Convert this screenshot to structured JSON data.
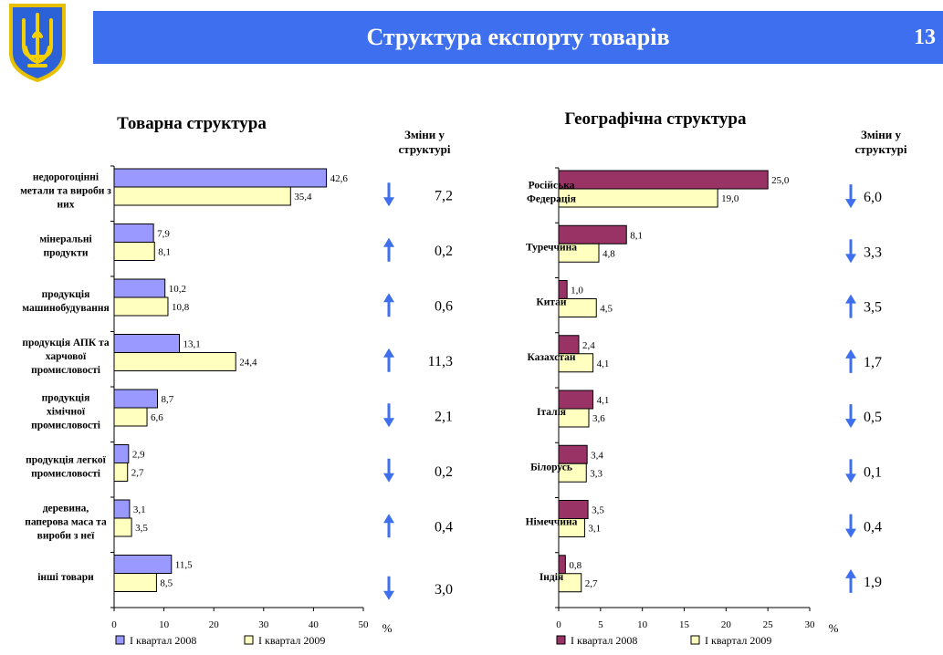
{
  "header": {
    "title": "Структура експорту товарів",
    "page_number": "13"
  },
  "colors": {
    "header_bg": "#3d6fef",
    "left_2008": "#9999ff",
    "left_2009": "#ffffc0",
    "right_2008": "#993366",
    "right_2009": "#ffffc0",
    "arrow": "#3d6fef"
  },
  "chart_data": [
    {
      "type": "bar",
      "orientation": "horizontal",
      "title": "Товарна структура",
      "changes_header": "Зміни у структурі",
      "categories": [
        "недорогоцінні метали та вироби з них",
        "мінеральні продукти",
        "продукція машинобудування",
        "продукція АПК та харчової промисловості",
        "продукція хімічної промисловості",
        "продукція легкої промисловості",
        "деревина, паперова маса та вироби з неї",
        "інші товари"
      ],
      "category_lines": [
        [
          "недорогоцінні",
          "метали та вироби з",
          "них"
        ],
        [
          "мінеральні",
          "продукти"
        ],
        [
          "продукція",
          "машинобудування"
        ],
        [
          "продукція АПК та",
          "харчової",
          "промисловості"
        ],
        [
          "продукція",
          "хімічної",
          "промисловості"
        ],
        [
          "продукція легкої",
          "промисловості"
        ],
        [
          "деревина,",
          "паперова маса та",
          "вироби з неї"
        ],
        [
          "інші товари"
        ]
      ],
      "series": [
        {
          "name": "І квартал 2008",
          "values": [
            42.6,
            7.9,
            10.2,
            13.1,
            8.7,
            2.9,
            3.1,
            11.5
          ],
          "labels": [
            "42,6",
            "7,9",
            "10,2",
            "13,1",
            "8,7",
            "2,9",
            "3,1",
            "11,5"
          ]
        },
        {
          "name": "І квартал 2009",
          "values": [
            35.4,
            8.1,
            10.8,
            24.4,
            6.6,
            2.7,
            3.5,
            8.5
          ],
          "labels": [
            "35,4",
            "8,1",
            "10,8",
            "24,4",
            "6,6",
            "2,7",
            "3,5",
            "8,5"
          ]
        }
      ],
      "changes": [
        {
          "direction": "down",
          "value": "7,2"
        },
        {
          "direction": "up",
          "value": "0,2"
        },
        {
          "direction": "up",
          "value": "0,6"
        },
        {
          "direction": "up",
          "value": "11,3"
        },
        {
          "direction": "down",
          "value": "2,1"
        },
        {
          "direction": "down",
          "value": "0,2"
        },
        {
          "direction": "up",
          "value": "0,4"
        },
        {
          "direction": "down",
          "value": "3,0"
        }
      ],
      "xlim": [
        0,
        50
      ],
      "xticks": [
        0,
        10,
        20,
        30,
        40,
        50
      ],
      "unit": "%"
    },
    {
      "type": "bar",
      "orientation": "horizontal",
      "title": "Географічна структура",
      "changes_header": "Зміни у структурі",
      "categories": [
        "Російська Федерація",
        "Туреччина",
        "Китай",
        "Казахстан",
        "Італія",
        "Білорусь",
        "Німеччина",
        "Індія"
      ],
      "category_lines": [
        [
          "Російська",
          "Федерація"
        ],
        [
          "Туреччина"
        ],
        [
          "Китай"
        ],
        [
          "Казахстан"
        ],
        [
          "Італія"
        ],
        [
          "Білорусь"
        ],
        [
          "Німеччина"
        ],
        [
          "Індія"
        ]
      ],
      "series": [
        {
          "name": "І квартал 2008",
          "values": [
            25.0,
            8.1,
            1.0,
            2.4,
            4.1,
            3.4,
            3.5,
            0.8
          ],
          "labels": [
            "25,0",
            "8,1",
            "1,0",
            "2,4",
            "4,1",
            "3,4",
            "3,5",
            "0,8"
          ]
        },
        {
          "name": "І квартал 2009",
          "values": [
            19.0,
            4.8,
            4.5,
            4.1,
            3.6,
            3.3,
            3.1,
            2.7
          ],
          "labels": [
            "19,0",
            "4,8",
            "4,5",
            "4,1",
            "3,6",
            "3,3",
            "3,1",
            "2,7"
          ]
        }
      ],
      "changes": [
        {
          "direction": "down",
          "value": "6,0"
        },
        {
          "direction": "down",
          "value": "3,3"
        },
        {
          "direction": "up",
          "value": "3,5"
        },
        {
          "direction": "up",
          "value": "1,7"
        },
        {
          "direction": "down",
          "value": "0,5"
        },
        {
          "direction": "down",
          "value": "0,1"
        },
        {
          "direction": "down",
          "value": "0,4"
        },
        {
          "direction": "up",
          "value": "1,9"
        }
      ],
      "xlim": [
        0,
        30
      ],
      "xticks": [
        0,
        5,
        10,
        15,
        20,
        25,
        30
      ],
      "unit": "%"
    }
  ]
}
